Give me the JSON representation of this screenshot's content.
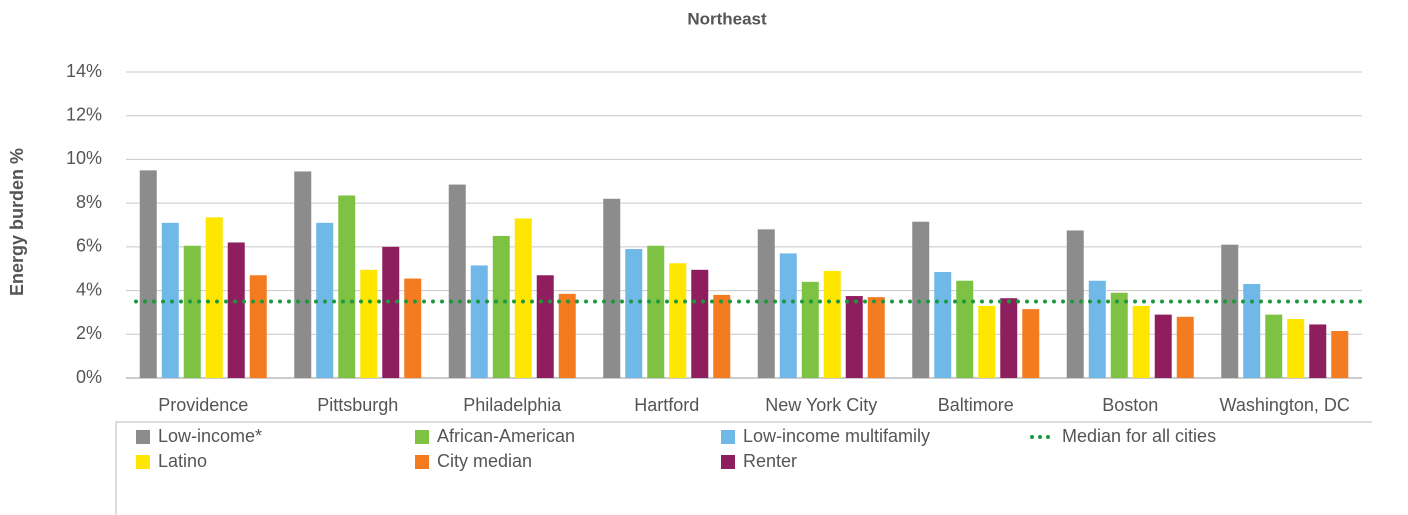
{
  "chart_data": {
    "type": "bar",
    "title": "Northeast",
    "y_label": "Energy burden %",
    "categories": [
      "Providence",
      "Pittsburgh",
      "Philadelphia",
      "Hartford",
      "New York City",
      "Baltimore",
      "Boston",
      "Washington, DC"
    ],
    "series": [
      {
        "name": "Low-income*",
        "color": "#8c8c8c",
        "values": [
          9.5,
          9.45,
          8.85,
          8.2,
          6.8,
          7.15,
          6.75,
          6.1
        ]
      },
      {
        "name": "Low-income multifamily",
        "color": "#6fb8e8",
        "values": [
          7.1,
          7.1,
          5.15,
          5.9,
          5.7,
          4.85,
          4.45,
          4.3
        ]
      },
      {
        "name": "African-American",
        "color": "#7dc242",
        "values": [
          6.05,
          8.35,
          6.5,
          6.05,
          4.4,
          4.45,
          3.9,
          2.9
        ]
      },
      {
        "name": "Latino",
        "color": "#ffe600",
        "values": [
          7.35,
          4.95,
          7.3,
          5.25,
          4.9,
          3.3,
          3.3,
          2.7
        ]
      },
      {
        "name": "Renter",
        "color": "#8e1e5e",
        "values": [
          6.2,
          6.0,
          4.7,
          4.95,
          3.75,
          3.65,
          2.9,
          2.45
        ]
      },
      {
        "name": "City median",
        "color": "#f47b20",
        "values": [
          4.7,
          4.55,
          3.85,
          3.8,
          3.7,
          3.15,
          2.8,
          2.15
        ]
      }
    ],
    "median": {
      "name": "Median for all cities",
      "value": 3.5,
      "color": "#1a9a3c"
    },
    "ylim": [
      0,
      14
    ],
    "yticks": [
      {
        "value": 0,
        "label": "0%"
      },
      {
        "value": 2,
        "label": "2%"
      },
      {
        "value": 4,
        "label": "4%"
      },
      {
        "value": 6,
        "label": "6%"
      },
      {
        "value": 8,
        "label": "8%"
      },
      {
        "value": 10,
        "label": "10%"
      },
      {
        "value": 12,
        "label": "12%"
      },
      {
        "value": 14,
        "label": "14%"
      }
    ],
    "grid": true
  }
}
